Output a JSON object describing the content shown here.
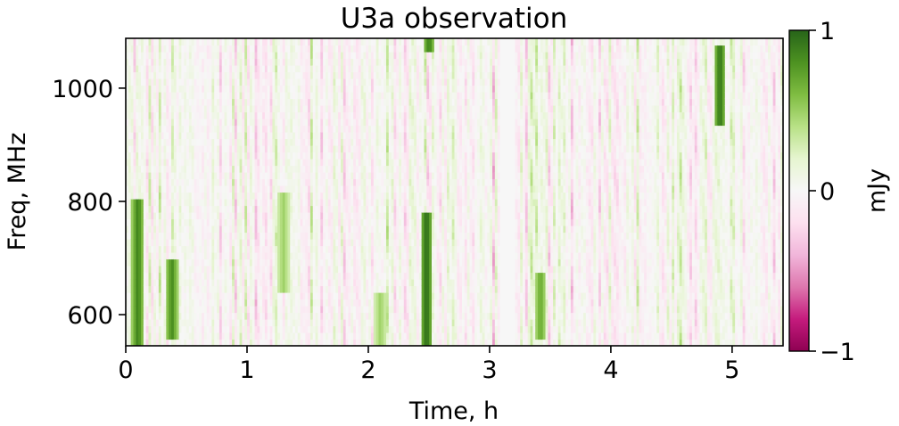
{
  "chart_data": {
    "type": "heatmap",
    "title": "U3a observation",
    "xlabel": "Time, h",
    "ylabel": "Freq, MHz",
    "xlim": [
      0,
      5.42
    ],
    "ylim": [
      545,
      1088
    ],
    "x_ticks": [
      0,
      1,
      2,
      3,
      4,
      5
    ],
    "x_tick_labels": [
      "0",
      "1",
      "2",
      "3",
      "4",
      "5"
    ],
    "y_ticks": [
      600,
      800,
      1000
    ],
    "y_tick_labels": [
      "600",
      "800",
      "1000"
    ],
    "colorbar": {
      "label": "mJy",
      "range": [
        -1,
        1
      ],
      "ticks": [
        -1,
        0,
        1
      ],
      "tick_labels": [
        "−1",
        "0",
        "1"
      ],
      "colormap": "PiYG",
      "colors": [
        "#8e0152",
        "#c51b7d",
        "#de77ae",
        "#f1b6da",
        "#fde0ef",
        "#f7f7f7",
        "#e6f5d0",
        "#b8e186",
        "#7fbc41",
        "#4d9221",
        "#276419"
      ]
    },
    "features": [
      {
        "time": 0.1,
        "freq_range": [
          550,
          800
        ],
        "value": 0.9
      },
      {
        "time": 0.38,
        "freq_range": [
          560,
          700
        ],
        "value": 0.85
      },
      {
        "time": 1.3,
        "freq_range": [
          640,
          820
        ],
        "value": 0.5
      },
      {
        "time": 2.1,
        "freq_range": [
          545,
          640
        ],
        "value": 0.5
      },
      {
        "time": 2.48,
        "freq_range": [
          545,
          780
        ],
        "value": 1.0
      },
      {
        "time": 2.5,
        "freq_range": [
          1065,
          1088
        ],
        "value": 0.9
      },
      {
        "time": 3.15,
        "freq_range": [
          545,
          1088
        ],
        "value": 0.0
      },
      {
        "time": 3.42,
        "freq_range": [
          560,
          680
        ],
        "value": 0.7
      },
      {
        "time": 4.9,
        "freq_range": [
          930,
          1080
        ],
        "value": 0.95
      }
    ]
  }
}
